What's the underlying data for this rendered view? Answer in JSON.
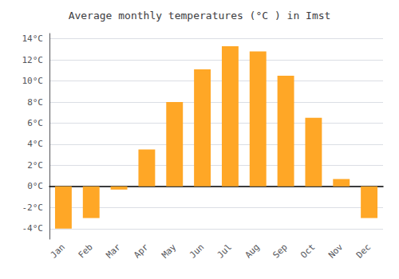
{
  "chart_data": {
    "type": "bar",
    "title": "Average monthly temperatures (°C ) in Imst",
    "categories": [
      "Jan",
      "Feb",
      "Mar",
      "Apr",
      "May",
      "Jun",
      "Jul",
      "Aug",
      "Sep",
      "Oct",
      "Nov",
      "Dec"
    ],
    "values": [
      -4.0,
      -3.0,
      -0.3,
      3.5,
      8.0,
      11.1,
      13.3,
      12.8,
      10.5,
      6.5,
      0.7,
      -3.0
    ],
    "color": "#FFA726",
    "ylim": [
      -5,
      14.5
    ],
    "yticks": [
      {
        "value": -4,
        "label": "-4°C"
      },
      {
        "value": -2,
        "label": "-2°C"
      },
      {
        "value": 0,
        "label": "0°C"
      },
      {
        "value": 2,
        "label": "2°C"
      },
      {
        "value": 4,
        "label": "4°C"
      },
      {
        "value": 6,
        "label": "6°C"
      },
      {
        "value": 8,
        "label": "8°C"
      },
      {
        "value": 10,
        "label": "10°C"
      },
      {
        "value": 12,
        "label": "12°C"
      },
      {
        "value": 14,
        "label": "14°C"
      }
    ],
    "grid": true
  }
}
